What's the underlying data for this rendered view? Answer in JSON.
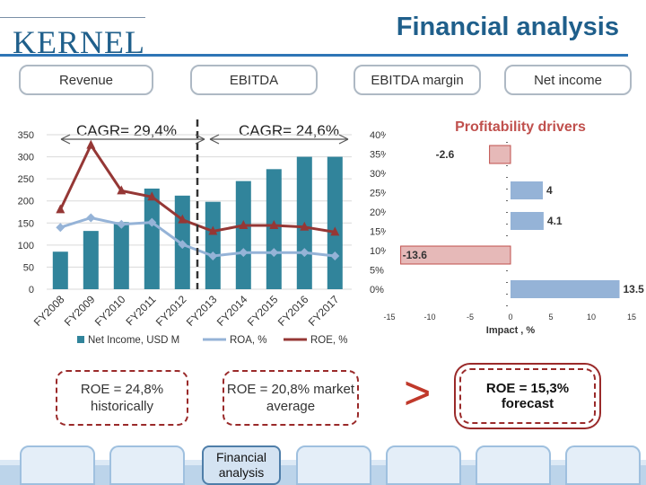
{
  "header": {
    "logo": "KERNEL",
    "title": "Financial analysis"
  },
  "pills": {
    "revenue": "Revenue",
    "ebitda": "EBITDA",
    "ebitda_margin": "EBITDA margin",
    "net_income": "Net income"
  },
  "cagr": {
    "left": "CAGR= 29,4%",
    "right": "CAGR= 24,6%"
  },
  "boxes": {
    "roe_hist": "ROE = 24,8% historically",
    "roe_market": "ROE = 20,8% market average",
    "gt_symbol": ">",
    "roe_forecast": "ROE = 15,3% forecast"
  },
  "footer": {
    "active_tab": "Financial analysis"
  },
  "colors": {
    "bar": "#31849b",
    "roa": "#95b3d7",
    "roe": "#953735",
    "pos_bar": "#95b3d7",
    "neg_bar": "#e6b9b8"
  },
  "chart_data": [
    {
      "type": "bar",
      "title": "",
      "categories": [
        "FY2008",
        "FY2009",
        "FY2010",
        "FY2011",
        "FY2012",
        "FY2013",
        "FY2014",
        "FY2015",
        "FY2016",
        "FY2017"
      ],
      "left_axis": {
        "ylim": [
          0,
          350
        ],
        "ticks": [
          "0",
          "50",
          "100",
          "150",
          "200",
          "250",
          "300",
          "350"
        ]
      },
      "right_axis": {
        "ylim": [
          0,
          40
        ],
        "ticks": [
          "0%",
          "5%",
          "10%",
          "15%",
          "20%",
          "25%",
          "30%",
          "35%",
          "40%"
        ]
      },
      "series": [
        {
          "name": "Net Income, USD M",
          "kind": "bar",
          "axis": "left",
          "values": [
            85,
            132,
            152,
            228,
            212,
            198,
            245,
            272,
            300,
            300
          ]
        },
        {
          "name": "ROA, %",
          "kind": "line",
          "axis": "right",
          "values": [
            16.0,
            18.5,
            16.8,
            17.3,
            11.6,
            8.6,
            9.5,
            9.5,
            9.5,
            8.6
          ]
        },
        {
          "name": "ROE, %",
          "kind": "line",
          "axis": "right",
          "values": [
            20.6,
            37.3,
            25.5,
            23.9,
            18.0,
            15.0,
            16.5,
            16.5,
            16.1,
            14.8
          ]
        }
      ],
      "divider_after": "FY2012",
      "legend": [
        "Net Income, USD M",
        "ROA, %",
        "ROE, %"
      ]
    },
    {
      "type": "bar",
      "orientation": "horizontal",
      "title": "Profitability drivers",
      "xlabel": "Impact , %",
      "xlim": [
        -15,
        15
      ],
      "xticks": [
        "-15",
        "-10",
        "-5",
        "0",
        "5",
        "10",
        "15"
      ],
      "values": [
        -2.6,
        4,
        4.1,
        -13.6,
        13.5
      ],
      "data_labels": [
        "-2.6",
        "4",
        "4.1",
        "-13.6",
        "13.5"
      ]
    }
  ]
}
